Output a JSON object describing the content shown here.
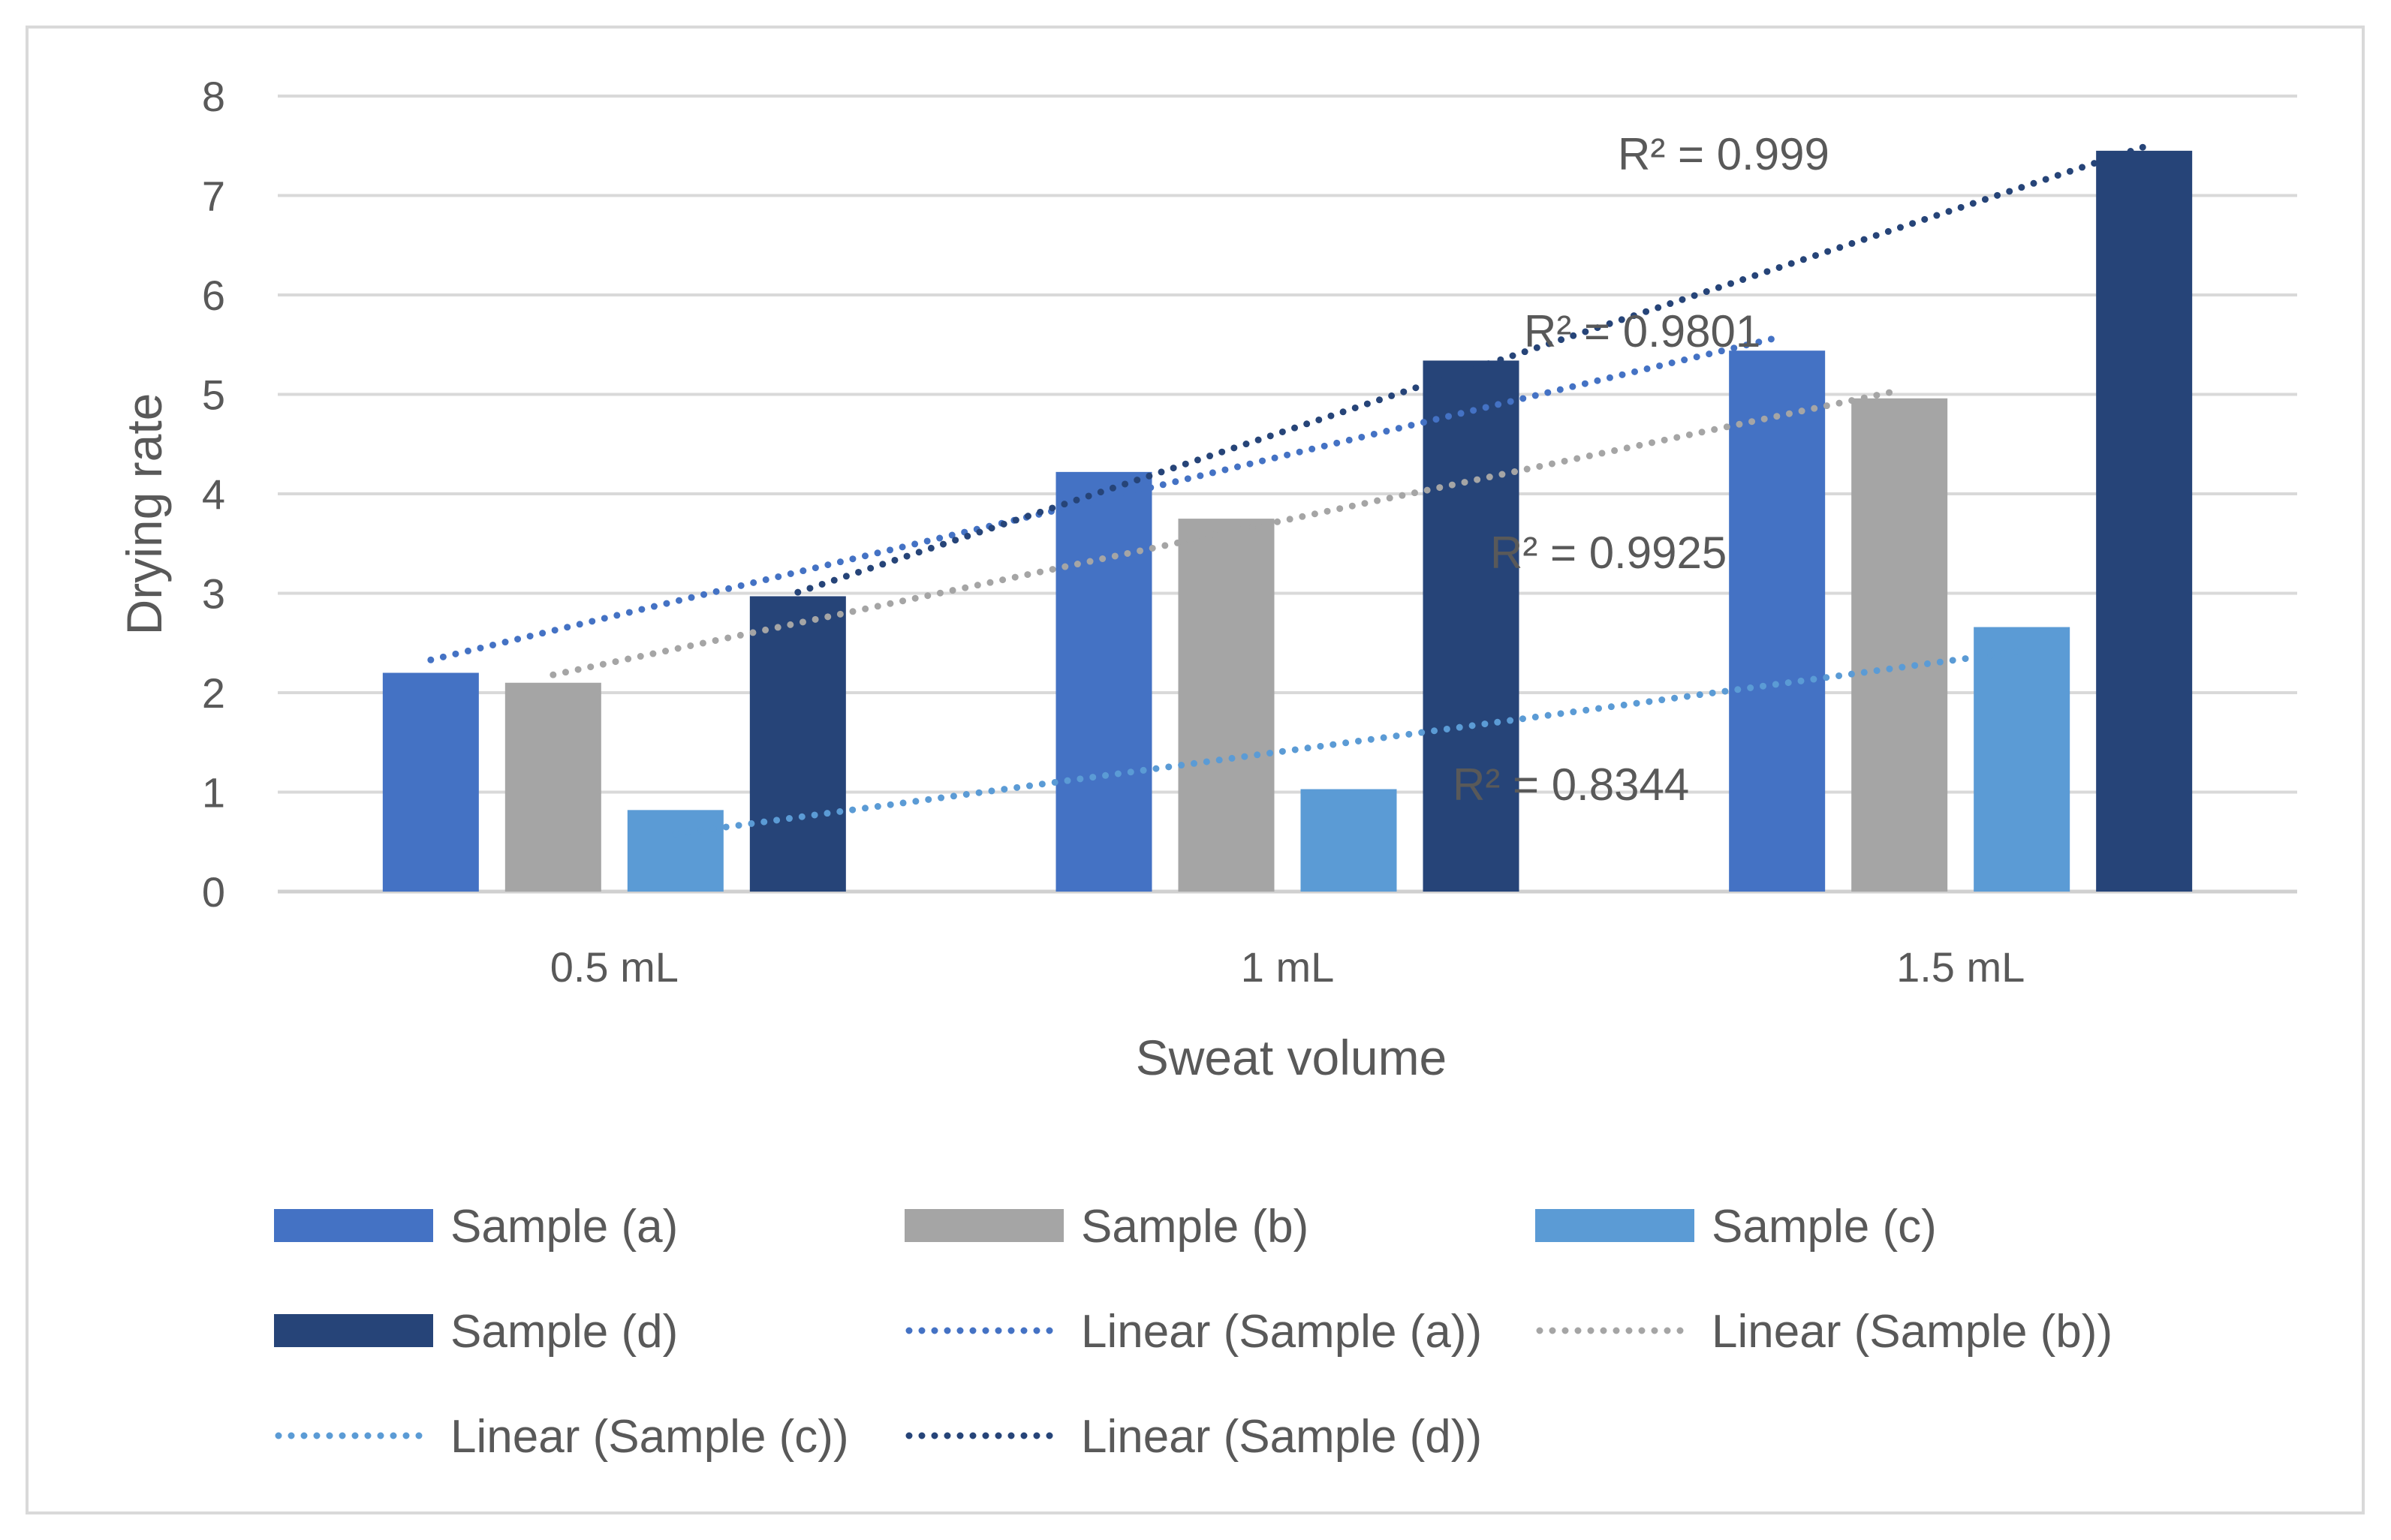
{
  "chart_data": {
    "type": "bar",
    "title": "",
    "xlabel": "Sweat volume",
    "ylabel": "Drying rate",
    "ylim": [
      0,
      8
    ],
    "yticks": [
      0,
      1,
      2,
      3,
      4,
      5,
      6,
      7,
      8
    ],
    "grid": true,
    "legend_position": "bottom",
    "categories": [
      "0.5 mL",
      "1 mL",
      "1.5 mL"
    ],
    "series": [
      {
        "name": "Sample (a)",
        "values": [
          2.2,
          4.22,
          5.44
        ],
        "color": "#4472c4"
      },
      {
        "name": "Sample (b)",
        "values": [
          2.1,
          3.75,
          4.96
        ],
        "color": "#a5a5a5"
      },
      {
        "name": "Sample (c)",
        "values": [
          0.82,
          1.03,
          2.66
        ],
        "color": "#5b9bd5"
      },
      {
        "name": "Sample (d)",
        "values": [
          2.97,
          5.34,
          7.45
        ],
        "color": "#264478"
      }
    ],
    "trendlines": [
      {
        "name": "Linear (Sample (a))",
        "series": 0,
        "start": 2.33,
        "end": 5.57,
        "r2_label": "R² = 0.9801",
        "color": "#4472c4"
      },
      {
        "name": "Linear (Sample (b))",
        "series": 1,
        "start": 2.18,
        "end": 5.04,
        "r2_label": "R² = 0.9925",
        "color": "#a5a5a5"
      },
      {
        "name": "Linear (Sample (c))",
        "series": 2,
        "start": 0.58,
        "end": 2.42,
        "r2_label": "R² = 0.8344",
        "color": "#5b9bd5"
      },
      {
        "name": "Linear (Sample (d))",
        "series": 3,
        "start": 3.01,
        "end": 7.49,
        "r2_label": "R² = 0.999",
        "color": "#264478"
      }
    ]
  }
}
